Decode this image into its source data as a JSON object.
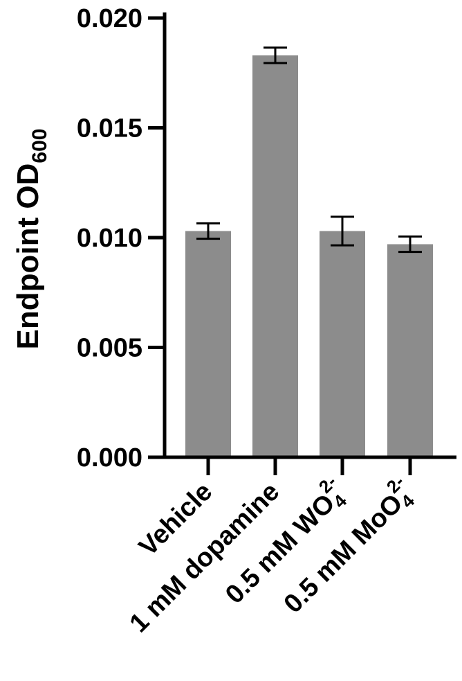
{
  "chart_data": {
    "type": "bar",
    "categories": [
      "Vehicle",
      "1 mM dopamine",
      "0.5 mM WO",
      "0.5 mM MoO"
    ],
    "category_sub": [
      "",
      "",
      "4",
      "4"
    ],
    "category_sup": [
      "",
      "",
      "2-",
      "2-"
    ],
    "values": [
      0.0103,
      0.0183,
      0.0103,
      0.0097
    ],
    "errors": [
      0.00035,
      0.00035,
      0.00065,
      0.00035
    ],
    "ylabel": "Endpoint OD",
    "ylabel_sub": "600",
    "yticks": [
      "0.000",
      "0.005",
      "0.010",
      "0.015",
      "0.020"
    ],
    "ytick_values": [
      0,
      0.005,
      0.01,
      0.015,
      0.02
    ],
    "ylim": [
      0,
      0.02
    ],
    "bar_color": "#8c8c8c",
    "grid": false
  }
}
